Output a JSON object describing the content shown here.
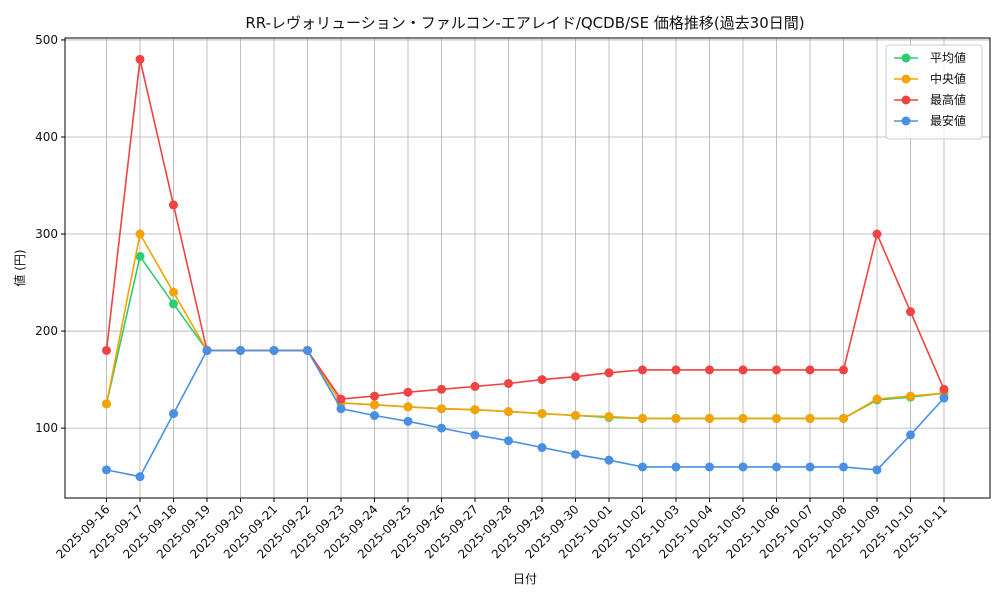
{
  "chart_data": {
    "type": "line",
    "title": "RR-レヴォリューション・ファルコン-エアレイド/QCDB/SE 価格推移(過去30日間)",
    "xlabel": "日付",
    "ylabel": "値 (円)",
    "ylim": [
      28,
      502
    ],
    "yticks": [
      100,
      200,
      300,
      400,
      500
    ],
    "grid": true,
    "legend_position": "top-right",
    "categories": [
      "2025-09-16",
      "2025-09-17",
      "2025-09-18",
      "2025-09-19",
      "2025-09-20",
      "2025-09-21",
      "2025-09-22",
      "2025-09-23",
      "2025-09-24",
      "2025-09-25",
      "2025-09-26",
      "2025-09-27",
      "2025-09-28",
      "2025-09-29",
      "2025-09-30",
      "2025-10-01",
      "2025-10-02",
      "2025-10-03",
      "2025-10-04",
      "2025-10-05",
      "2025-10-06",
      "2025-10-07",
      "2025-10-08",
      "2025-10-09",
      "2025-10-10",
      "2025-10-11"
    ],
    "series": [
      {
        "name": "平均値",
        "color": "#2ecc71",
        "values": [
          125,
          277,
          228,
          180,
          180,
          180,
          180,
          126,
          124,
          122,
          120,
          119,
          117,
          115,
          113,
          111,
          110,
          110,
          110,
          110,
          110,
          110,
          110,
          129,
          132,
          136
        ]
      },
      {
        "name": "中央値",
        "color": "#f5a300",
        "values": [
          125,
          300,
          240,
          180,
          180,
          180,
          180,
          126,
          124,
          122,
          120,
          119,
          117,
          115,
          113,
          112,
          110,
          110,
          110,
          110,
          110,
          110,
          110,
          130,
          133,
          136
        ]
      },
      {
        "name": "最高値",
        "color": "#ee4444",
        "values": [
          180,
          480,
          330,
          180,
          180,
          180,
          180,
          130,
          133,
          137,
          140,
          143,
          146,
          150,
          153,
          157,
          160,
          160,
          160,
          160,
          160,
          160,
          160,
          300,
          220,
          140
        ]
      },
      {
        "name": "最安値",
        "color": "#4a90e2",
        "values": [
          57,
          50,
          115,
          180,
          180,
          180,
          180,
          120,
          113,
          107,
          100,
          93,
          87,
          80,
          73,
          67,
          60,
          60,
          60,
          60,
          60,
          60,
          60,
          57,
          93,
          131
        ]
      }
    ]
  }
}
